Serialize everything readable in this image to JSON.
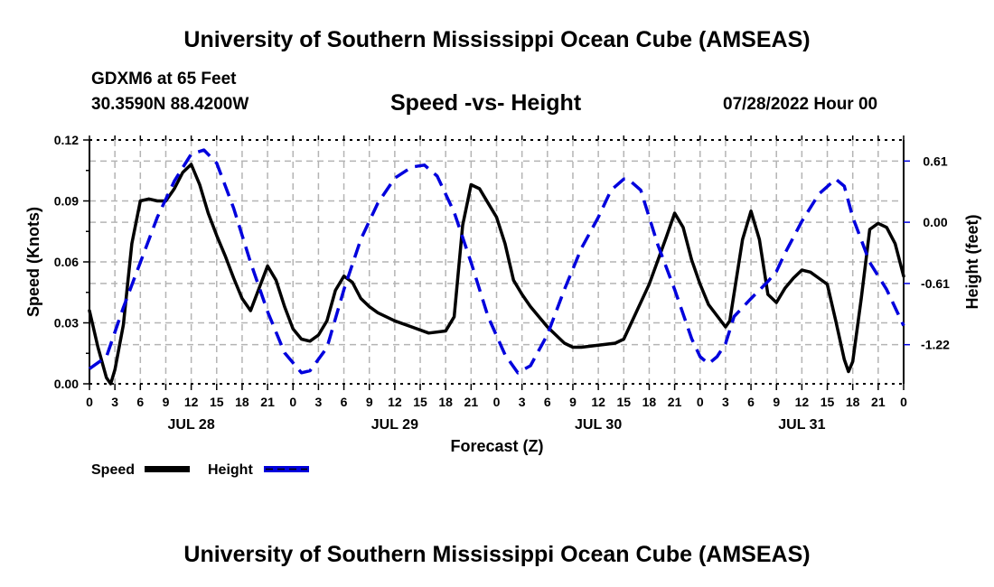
{
  "header": {
    "main_title": "University of Southern Mississippi Ocean Cube (AMSEAS)",
    "station": "GDXM6 at 65 Feet",
    "coords": "30.3590N  88.4200W",
    "subtitle": "Speed -vs- Height",
    "date": "07/28/2022 Hour 00"
  },
  "footer": {
    "title": "University of Southern Mississippi Ocean Cube (AMSEAS)"
  },
  "chart_data": {
    "type": "line",
    "title": "Speed -vs- Height",
    "xlabel": "Forecast (Z)",
    "ylabel": "Speed (Knots)",
    "y2label": "Height (feet)",
    "xlim": [
      0,
      96
    ],
    "ylim": [
      0,
      0.12
    ],
    "y2lim": [
      -1.61,
      0.82
    ],
    "grid": true,
    "legend_position": "bottom-left",
    "x_tick_labels": [
      "0",
      "3",
      "6",
      "9",
      "12",
      "15",
      "18",
      "21",
      "0",
      "3",
      "6",
      "9",
      "12",
      "15",
      "18",
      "21",
      "0",
      "3",
      "6",
      "9",
      "12",
      "15",
      "18",
      "21",
      "0",
      "3",
      "6",
      "9",
      "12",
      "15",
      "18",
      "21",
      "0"
    ],
    "day_labels": [
      {
        "hour": 12,
        "label": "JUL 28"
      },
      {
        "hour": 36,
        "label": "JUL 29"
      },
      {
        "hour": 60,
        "label": "JUL 30"
      },
      {
        "hour": 84,
        "label": "JUL 31"
      }
    ],
    "y_ticks": [
      {
        "value": 0,
        "label": "0.00"
      },
      {
        "value": 0.03,
        "label": "0.03"
      },
      {
        "value": 0.06,
        "label": "0.06"
      },
      {
        "value": 0.09,
        "label": "0.09"
      },
      {
        "value": 0.12,
        "label": "0.12"
      }
    ],
    "y2_ticks": [
      {
        "value": 0.61,
        "label": "0.61"
      },
      {
        "value": 0,
        "label": "0.00"
      },
      {
        "value": -0.61,
        "label": "-0.61"
      },
      {
        "value": -1.22,
        "label": "-1.22"
      }
    ],
    "series": [
      {
        "name": "Speed",
        "color": "#000000",
        "axis": "left",
        "style": "solid",
        "x": [
          0,
          1,
          2,
          2.5,
          3,
          4,
          5,
          6,
          7,
          8,
          9,
          10,
          11,
          12,
          13,
          14,
          15,
          16,
          17,
          18,
          19,
          20,
          21,
          22,
          23,
          24,
          25,
          26,
          27,
          28,
          29,
          30,
          31,
          32,
          33,
          34,
          36,
          38,
          40,
          42,
          43,
          44,
          45,
          46,
          47,
          48,
          49,
          50,
          51,
          52,
          54,
          56,
          57,
          58,
          60,
          62,
          63,
          64,
          66,
          68,
          69,
          70,
          71,
          72,
          73,
          75,
          75.5,
          77,
          78,
          79,
          80,
          81,
          82,
          83,
          84,
          85,
          86,
          87,
          88,
          89,
          89.5,
          90,
          91,
          92,
          93,
          94,
          95,
          96
        ],
        "y": [
          0.036,
          0.018,
          0.003,
          0.0,
          0.007,
          0.029,
          0.069,
          0.09,
          0.091,
          0.09,
          0.09,
          0.096,
          0.104,
          0.108,
          0.098,
          0.084,
          0.073,
          0.063,
          0.052,
          0.042,
          0.036,
          0.047,
          0.058,
          0.051,
          0.038,
          0.027,
          0.022,
          0.021,
          0.024,
          0.031,
          0.046,
          0.053,
          0.05,
          0.042,
          0.038,
          0.035,
          0.031,
          0.028,
          0.025,
          0.026,
          0.033,
          0.078,
          0.098,
          0.096,
          0.089,
          0.082,
          0.069,
          0.051,
          0.044,
          0.038,
          0.028,
          0.02,
          0.018,
          0.018,
          0.019,
          0.02,
          0.022,
          0.031,
          0.049,
          0.072,
          0.084,
          0.077,
          0.061,
          0.049,
          0.039,
          0.028,
          0.031,
          0.071,
          0.085,
          0.071,
          0.044,
          0.04,
          0.047,
          0.052,
          0.056,
          0.055,
          0.052,
          0.049,
          0.031,
          0.012,
          0.006,
          0.011,
          0.042,
          0.076,
          0.079,
          0.077,
          0.069,
          0.053
        ]
      },
      {
        "name": "Height",
        "color": "#0000dd",
        "axis": "right",
        "style": "dashed",
        "x": [
          0,
          2,
          4,
          6,
          8,
          10,
          12,
          13.5,
          15,
          17,
          19,
          21,
          23,
          25,
          26,
          28,
          30,
          32,
          34,
          36,
          38,
          39.5,
          41,
          43,
          45,
          47,
          49,
          50.5,
          52,
          54,
          56,
          58,
          60,
          61.5,
          63,
          63.5,
          65,
          67,
          69,
          71,
          72,
          73,
          74,
          75,
          76,
          78,
          80,
          81,
          82,
          84,
          86,
          88,
          89,
          90,
          92,
          94,
          96
        ],
        "y": [
          -1.46,
          -1.34,
          -0.85,
          -0.4,
          0.05,
          0.41,
          0.68,
          0.72,
          0.59,
          0.14,
          -0.4,
          -0.89,
          -1.3,
          -1.5,
          -1.48,
          -1.25,
          -0.67,
          -0.17,
          0.19,
          0.44,
          0.55,
          0.57,
          0.46,
          0.1,
          -0.4,
          -0.94,
          -1.32,
          -1.5,
          -1.43,
          -1.12,
          -0.67,
          -0.26,
          0.05,
          0.32,
          0.43,
          0.43,
          0.32,
          -0.22,
          -0.67,
          -1.16,
          -1.34,
          -1.41,
          -1.34,
          -1.21,
          -0.94,
          -0.76,
          -0.59,
          -0.49,
          -0.31,
          0.01,
          0.28,
          0.43,
          0.36,
          0.05,
          -0.4,
          -0.67,
          -1.03
        ]
      }
    ]
  }
}
